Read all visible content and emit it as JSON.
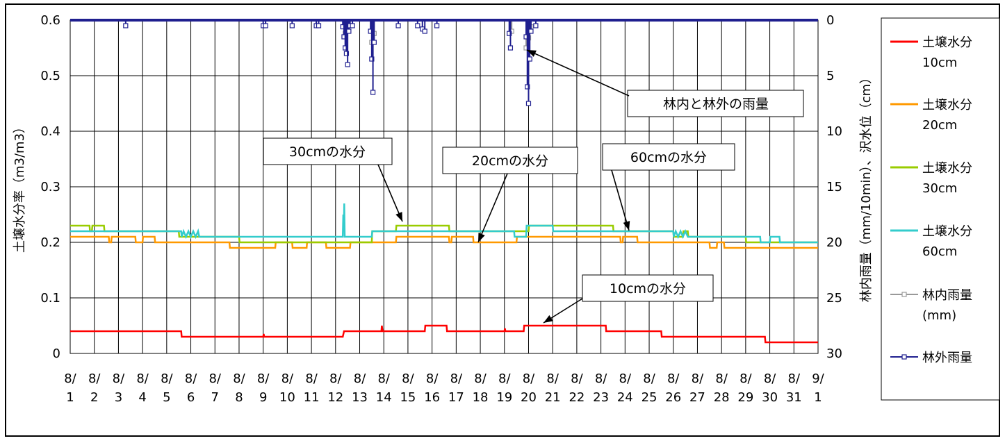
{
  "chart_data": {
    "type": "line",
    "left_axis": {
      "label": "土壌水分率（m3/m3）",
      "ticks": [
        "0.6",
        "0.5",
        "0.4",
        "0.3",
        "0.2",
        "0.1",
        "0"
      ],
      "ylim": [
        0,
        0.6
      ]
    },
    "right_axis": {
      "label": "林内雨量（mm/10min）、沢水位（cm）",
      "ticks": [
        "0",
        "5",
        "10",
        "15",
        "20",
        "25",
        "30"
      ],
      "ylim": [
        0,
        30
      ],
      "inverted": true
    },
    "x_ticks": [
      "8/1",
      "8/2",
      "8/3",
      "8/4",
      "8/5",
      "8/6",
      "8/7",
      "8/8",
      "8/9",
      "8/10",
      "8/11",
      "8/12",
      "8/13",
      "8/14",
      "8/15",
      "8/16",
      "8/17",
      "8/18",
      "8/19",
      "8/20",
      "8/21",
      "8/22",
      "8/23",
      "8/24",
      "8/25",
      "8/26",
      "8/27",
      "8/28",
      "8/29",
      "8/30",
      "8/31",
      "9/1"
    ],
    "x_tick_labels": [
      {
        "top": "8/",
        "bottom": "1"
      },
      {
        "top": "8/",
        "bottom": "2"
      },
      {
        "top": "8/",
        "bottom": "3"
      },
      {
        "top": "8/",
        "bottom": "4"
      },
      {
        "top": "8/",
        "bottom": "5"
      },
      {
        "top": "8/",
        "bottom": "6"
      },
      {
        "top": "8/",
        "bottom": "7"
      },
      {
        "top": "8/",
        "bottom": "8"
      },
      {
        "top": "8/",
        "bottom": "9"
      },
      {
        "top": "8/",
        "bottom": "10"
      },
      {
        "top": "8/",
        "bottom": "11"
      },
      {
        "top": "8/",
        "bottom": "12"
      },
      {
        "top": "8/",
        "bottom": "13"
      },
      {
        "top": "8/",
        "bottom": "14"
      },
      {
        "top": "8/",
        "bottom": "15"
      },
      {
        "top": "8/",
        "bottom": "16"
      },
      {
        "top": "8/",
        "bottom": "17"
      },
      {
        "top": "8/",
        "bottom": "18"
      },
      {
        "top": "8/",
        "bottom": "19"
      },
      {
        "top": "8/",
        "bottom": "20"
      },
      {
        "top": "8/",
        "bottom": "21"
      },
      {
        "top": "8/",
        "bottom": "22"
      },
      {
        "top": "8/",
        "bottom": "23"
      },
      {
        "top": "8/",
        "bottom": "24"
      },
      {
        "top": "8/",
        "bottom": "25"
      },
      {
        "top": "8/",
        "bottom": "26"
      },
      {
        "top": "8/",
        "bottom": "27"
      },
      {
        "top": "8/",
        "bottom": "28"
      },
      {
        "top": "8/",
        "bottom": "29"
      },
      {
        "top": "8/",
        "bottom": "30"
      },
      {
        "top": "8/",
        "bottom": "31"
      },
      {
        "top": "9/",
        "bottom": "1"
      }
    ],
    "grid": "vertical-daily-and-horizontal",
    "legend_placement": "right",
    "series": [
      {
        "name": "土壌水分 10cm",
        "name_line1": "土壌水分",
        "name_line2": "10cm",
        "axis": "left",
        "color": "#ff0000",
        "kind": "line",
        "points": [
          [
            0,
            0.04
          ],
          [
            4.6,
            0.04
          ],
          [
            4.62,
            0.03
          ],
          [
            8.0,
            0.03
          ],
          [
            8.02,
            0.035
          ],
          [
            8.04,
            0.03
          ],
          [
            11.3,
            0.03
          ],
          [
            11.35,
            0.04
          ],
          [
            12.9,
            0.04
          ],
          [
            12.92,
            0.05
          ],
          [
            12.95,
            0.04
          ],
          [
            14.7,
            0.04
          ],
          [
            14.72,
            0.05
          ],
          [
            15.6,
            0.05
          ],
          [
            15.62,
            0.04
          ],
          [
            18.0,
            0.04
          ],
          [
            18.02,
            0.045
          ],
          [
            18.04,
            0.04
          ],
          [
            18.8,
            0.04
          ],
          [
            18.82,
            0.05
          ],
          [
            22.2,
            0.05
          ],
          [
            22.22,
            0.04
          ],
          [
            24.5,
            0.04
          ],
          [
            24.52,
            0.03
          ],
          [
            28.8,
            0.03
          ],
          [
            28.82,
            0.02
          ],
          [
            31,
            0.02
          ]
        ]
      },
      {
        "name": "土壌水分 20cm",
        "name_line1": "土壌水分",
        "name_line2": "20cm",
        "axis": "left",
        "color": "#ff9900",
        "kind": "line",
        "points": [
          [
            0,
            0.21
          ],
          [
            1.6,
            0.21
          ],
          [
            1.62,
            0.2
          ],
          [
            1.7,
            0.2
          ],
          [
            1.72,
            0.21
          ],
          [
            2.7,
            0.21
          ],
          [
            2.72,
            0.2
          ],
          [
            3.0,
            0.2
          ],
          [
            3.02,
            0.21
          ],
          [
            3.5,
            0.21
          ],
          [
            3.52,
            0.2
          ],
          [
            6.6,
            0.2
          ],
          [
            6.62,
            0.19
          ],
          [
            8.5,
            0.19
          ],
          [
            8.52,
            0.2
          ],
          [
            9.2,
            0.2
          ],
          [
            9.22,
            0.19
          ],
          [
            9.8,
            0.19
          ],
          [
            9.82,
            0.2
          ],
          [
            10.6,
            0.2
          ],
          [
            10.62,
            0.19
          ],
          [
            11.6,
            0.19
          ],
          [
            11.62,
            0.2
          ],
          [
            13.5,
            0.2
          ],
          [
            13.52,
            0.21
          ],
          [
            15.7,
            0.21
          ],
          [
            15.72,
            0.2
          ],
          [
            15.8,
            0.2
          ],
          [
            15.82,
            0.21
          ],
          [
            16.7,
            0.21
          ],
          [
            16.72,
            0.2
          ],
          [
            18.5,
            0.2
          ],
          [
            18.52,
            0.21
          ],
          [
            22.8,
            0.21
          ],
          [
            22.82,
            0.2
          ],
          [
            22.9,
            0.2
          ],
          [
            22.92,
            0.21
          ],
          [
            23.5,
            0.21
          ],
          [
            23.52,
            0.2
          ],
          [
            26.5,
            0.2
          ],
          [
            26.52,
            0.19
          ],
          [
            26.8,
            0.19
          ],
          [
            26.82,
            0.2
          ],
          [
            27.1,
            0.2
          ],
          [
            27.12,
            0.19
          ],
          [
            31,
            0.19
          ]
        ]
      },
      {
        "name": "土壌水分 30cm",
        "name_line1": "土壌水分",
        "name_line2": "30cm",
        "axis": "left",
        "color": "#99cc00",
        "kind": "line",
        "points": [
          [
            0,
            0.23
          ],
          [
            0.8,
            0.23
          ],
          [
            0.82,
            0.22
          ],
          [
            0.9,
            0.22
          ],
          [
            0.92,
            0.23
          ],
          [
            1.4,
            0.23
          ],
          [
            1.42,
            0.22
          ],
          [
            4.5,
            0.22
          ],
          [
            4.52,
            0.21
          ],
          [
            7.0,
            0.21
          ],
          [
            7.02,
            0.2
          ],
          [
            12.5,
            0.2
          ],
          [
            12.52,
            0.22
          ],
          [
            13.5,
            0.22
          ],
          [
            13.52,
            0.23
          ],
          [
            15.7,
            0.23
          ],
          [
            15.72,
            0.22
          ],
          [
            19.0,
            0.22
          ],
          [
            19.02,
            0.23
          ],
          [
            22.5,
            0.23
          ],
          [
            22.52,
            0.22
          ],
          [
            25.0,
            0.22
          ],
          [
            25.02,
            0.21
          ],
          [
            25.4,
            0.21
          ],
          [
            25.42,
            0.22
          ],
          [
            25.6,
            0.22
          ],
          [
            25.62,
            0.21
          ],
          [
            28.0,
            0.21
          ],
          [
            28.02,
            0.2
          ],
          [
            31,
            0.2
          ]
        ]
      },
      {
        "name": "土壌水分 60cm",
        "name_line1": "土壌水分",
        "name_line2": "60cm",
        "axis": "left",
        "color": "#33cccc",
        "kind": "line",
        "points": [
          [
            0,
            0.22
          ],
          [
            4.6,
            0.22
          ],
          [
            4.62,
            0.21
          ],
          [
            4.7,
            0.22
          ],
          [
            4.8,
            0.21
          ],
          [
            4.9,
            0.22
          ],
          [
            5.0,
            0.21
          ],
          [
            5.1,
            0.22
          ],
          [
            5.2,
            0.21
          ],
          [
            5.3,
            0.22
          ],
          [
            5.35,
            0.21
          ],
          [
            11.3,
            0.21
          ],
          [
            11.32,
            0.25
          ],
          [
            11.34,
            0.22
          ],
          [
            11.36,
            0.27
          ],
          [
            11.38,
            0.21
          ],
          [
            12.5,
            0.21
          ],
          [
            12.52,
            0.22
          ],
          [
            18.4,
            0.22
          ],
          [
            18.42,
            0.21
          ],
          [
            18.9,
            0.21
          ],
          [
            18.92,
            0.23
          ],
          [
            20.0,
            0.23
          ],
          [
            20.02,
            0.22
          ],
          [
            25.0,
            0.22
          ],
          [
            25.02,
            0.21
          ],
          [
            25.1,
            0.22
          ],
          [
            25.2,
            0.21
          ],
          [
            25.3,
            0.22
          ],
          [
            25.4,
            0.21
          ],
          [
            25.5,
            0.22
          ],
          [
            25.6,
            0.21
          ],
          [
            28.6,
            0.21
          ],
          [
            28.62,
            0.2
          ],
          [
            29.0,
            0.2
          ],
          [
            29.02,
            0.21
          ],
          [
            29.4,
            0.21
          ],
          [
            29.42,
            0.2
          ],
          [
            31,
            0.2
          ]
        ]
      },
      {
        "name": "林内雨量 (mm)",
        "name_line1": "林内雨量",
        "name_line2": "(mm)",
        "axis": "right",
        "color": "#999999",
        "kind": "marker-line",
        "events": [
          [
            11.4,
            1.2
          ],
          [
            11.5,
            0.8
          ],
          [
            12.5,
            2.0
          ],
          [
            12.6,
            1.2
          ],
          [
            18.3,
            1.0
          ],
          [
            18.9,
            2.5
          ],
          [
            19.0,
            1.6
          ],
          [
            19.1,
            0.6
          ]
        ]
      },
      {
        "name": "林外雨量",
        "name_line1": "林外雨量",
        "name_line2": "",
        "axis": "right",
        "color": "#1f1f8f",
        "kind": "marker-line",
        "events": [
          [
            2.3,
            0.5
          ],
          [
            8.0,
            0.5
          ],
          [
            8.1,
            0.5
          ],
          [
            9.2,
            0.5
          ],
          [
            10.2,
            0.5
          ],
          [
            10.3,
            0.5
          ],
          [
            11.3,
            0.6
          ],
          [
            11.35,
            1.5
          ],
          [
            11.4,
            2.5
          ],
          [
            11.45,
            3.0
          ],
          [
            11.5,
            4.0
          ],
          [
            11.55,
            1.0
          ],
          [
            11.6,
            0.5
          ],
          [
            11.7,
            0.5
          ],
          [
            12.45,
            1.0
          ],
          [
            12.5,
            3.5
          ],
          [
            12.55,
            6.5
          ],
          [
            12.6,
            2.0
          ],
          [
            13.6,
            0.5
          ],
          [
            14.4,
            0.5
          ],
          [
            14.6,
            0.8
          ],
          [
            14.7,
            1.0
          ],
          [
            15.2,
            0.5
          ],
          [
            18.2,
            1.2
          ],
          [
            18.25,
            2.5
          ],
          [
            18.9,
            1.5
          ],
          [
            18.95,
            6.0
          ],
          [
            19.0,
            7.5
          ],
          [
            19.05,
            3.5
          ],
          [
            19.1,
            1.0
          ],
          [
            19.3,
            0.5
          ]
        ]
      }
    ],
    "annotations": [
      {
        "text": "林内と林外の雨量"
      },
      {
        "text": "30cmの水分"
      },
      {
        "text": "20cmの水分"
      },
      {
        "text": "60cmの水分"
      },
      {
        "text": "10cmの水分"
      }
    ]
  }
}
